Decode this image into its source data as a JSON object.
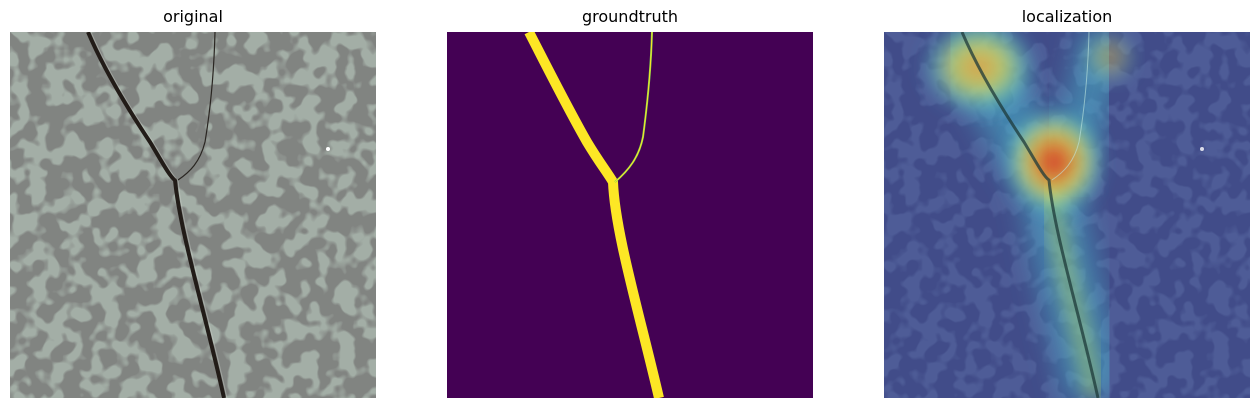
{
  "panels": [
    {
      "title": "original",
      "content": "photo of cracked speckled stone surface"
    },
    {
      "title": "groundtruth",
      "content": "binary crack mask"
    },
    {
      "title": "localization",
      "content": "heatmap overlay on photo"
    }
  ],
  "colors": {
    "mask_background": "#440154",
    "mask_foreground": "#fde725",
    "stone_base": "#9aa59d",
    "stone_speckle": "#3a3c39",
    "crack": "#2a241f",
    "heat_low": "#1b2a8a",
    "heat_high": "#e02020"
  }
}
